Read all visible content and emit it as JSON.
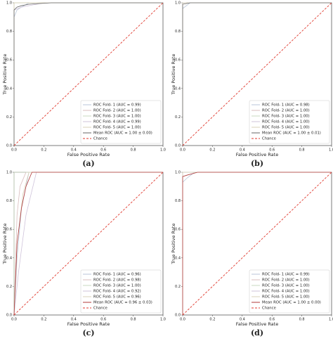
{
  "chart_data": [
    {
      "type": "line",
      "caption": "(a)",
      "x_label": "False Positive Rate",
      "y_label": "True Positive Rate",
      "xlim": [
        0,
        1
      ],
      "ylim": [
        0,
        1
      ],
      "xticks": [
        {
          "value": 0,
          "label": "0.0"
        },
        0.2,
        0.4,
        0.6,
        0.8,
        {
          "value": 1,
          "label": "1.0"
        }
      ],
      "yticks": [
        {
          "value": 0,
          "label": "0.0"
        },
        0.2,
        0.4,
        0.6,
        0.8,
        {
          "value": 1,
          "label": "1.0"
        }
      ],
      "legend": "lower right",
      "series": [
        {
          "name": "ROC Fold- 1 (AUC = 0.99)",
          "color": "#b9c6d8",
          "x": [
            0,
            0,
            0.02,
            0.05,
            0.1,
            1
          ],
          "values": [
            0,
            0.9,
            0.95,
            0.97,
            1,
            1
          ]
        },
        {
          "name": "ROC Fold- 2 (AUC = 1.00)",
          "color": "#d8bcbc",
          "x": [
            0,
            0,
            1
          ],
          "values": [
            0,
            1,
            1
          ]
        },
        {
          "name": "ROC Fold- 3 (AUC = 1.00)",
          "color": "#c9d8c0",
          "x": [
            0,
            0,
            1
          ],
          "values": [
            0,
            1,
            1
          ]
        },
        {
          "name": "ROC Fold- 4 (AUC = 0.99)",
          "color": "#cfc3da",
          "x": [
            0,
            0,
            0.05,
            0.2,
            1
          ],
          "values": [
            0,
            0.95,
            0.97,
            1,
            1
          ]
        },
        {
          "name": "ROC Fold- 5 (AUC = 1.00)",
          "color": "#d9d2b8",
          "x": [
            0,
            0,
            1
          ],
          "values": [
            0,
            1,
            1
          ]
        },
        {
          "name": "Mean ROC (AUC = 1.00 ± 0.00)",
          "color": "#666666",
          "x": [
            0,
            0,
            0.02,
            0.05,
            0.1,
            0.25,
            1
          ],
          "values": [
            0,
            0.95,
            0.97,
            0.98,
            0.99,
            1,
            1
          ]
        },
        {
          "name": "Chance",
          "color": "#e03a2f",
          "linestyle": "dashed",
          "x": [
            0,
            1
          ],
          "values": [
            0,
            1
          ]
        }
      ]
    },
    {
      "type": "line",
      "caption": "(b)",
      "x_label": "False Positive Rate",
      "y_label": "True Positive Rate",
      "xlim": [
        0,
        1
      ],
      "ylim": [
        0,
        1
      ],
      "xticks": [
        {
          "value": 0,
          "label": "0.0"
        },
        0.2,
        0.4,
        0.6,
        0.8,
        {
          "value": 1,
          "label": "1.0"
        }
      ],
      "yticks": [
        {
          "value": 0,
          "label": "0.0"
        },
        0.2,
        0.4,
        0.6,
        0.8,
        {
          "value": 1,
          "label": "1.0"
        }
      ],
      "legend": "lower right",
      "series": [
        {
          "name": "ROC Fold- 1 (AUC = 0.98)",
          "color": "#b9c6d8",
          "x": [
            0,
            0,
            0.05,
            1
          ],
          "values": [
            0,
            0.96,
            1,
            1
          ]
        },
        {
          "name": "ROC Fold- 2 (AUC = 1.00)",
          "color": "#d8bcbc",
          "x": [
            0,
            0,
            1
          ],
          "values": [
            0,
            1,
            1
          ]
        },
        {
          "name": "ROC Fold- 3 (AUC = 1.00)",
          "color": "#c9d8c0",
          "x": [
            0,
            0,
            1
          ],
          "values": [
            0,
            1,
            1
          ]
        },
        {
          "name": "ROC Fold- 4 (AUC = 1.00)",
          "color": "#cfc3da",
          "x": [
            0,
            0,
            1
          ],
          "values": [
            0,
            1,
            1
          ]
        },
        {
          "name": "ROC Fold- 5 (AUC = 1.00)",
          "color": "#d9d2b8",
          "x": [
            0,
            0,
            1
          ],
          "values": [
            0,
            1,
            1
          ]
        },
        {
          "name": "Mean ROC (AUC = 1.00 ± 0.01)",
          "color": "#666666",
          "x": [
            0,
            0,
            0.05,
            1
          ],
          "values": [
            0,
            0.99,
            1,
            1
          ]
        },
        {
          "name": "Chance",
          "color": "#e03a2f",
          "linestyle": "dashed",
          "x": [
            0,
            1
          ],
          "values": [
            0,
            1
          ]
        }
      ]
    },
    {
      "type": "line",
      "caption": "(c)",
      "x_label": "False Positive Rate",
      "y_label": "True Positive Rate",
      "xlim": [
        0,
        1
      ],
      "ylim": [
        0,
        1
      ],
      "xticks": [
        {
          "value": 0,
          "label": "0.0"
        },
        0.2,
        0.4,
        0.6,
        0.8,
        {
          "value": 1,
          "label": "1.0"
        }
      ],
      "yticks": [
        {
          "value": 0,
          "label": "0.0"
        },
        0.2,
        0.4,
        0.6,
        0.8,
        {
          "value": 1,
          "label": "1.0"
        }
      ],
      "legend": "lower right",
      "series": [
        {
          "name": "ROC Fold- 1 (AUC = 0.96)",
          "color": "#b9c6d8",
          "x": [
            0,
            0.02,
            0.05,
            0.1,
            1
          ],
          "values": [
            0,
            0.4,
            0.75,
            1,
            1
          ]
        },
        {
          "name": "ROC Fold- 2 (AUC = 0.98)",
          "color": "#d8bcbc",
          "x": [
            0,
            0.02,
            0.04,
            0.08,
            1
          ],
          "values": [
            0,
            0.7,
            0.9,
            1,
            1
          ]
        },
        {
          "name": "ROC Fold- 3 (AUC = 1.00)",
          "color": "#c9d8c0",
          "x": [
            0,
            0,
            1
          ],
          "values": [
            0,
            1,
            1
          ]
        },
        {
          "name": "ROC Fold- 4 (AUC = 0.92)",
          "color": "#cfc3da",
          "x": [
            0,
            0.03,
            0.08,
            0.15,
            1
          ],
          "values": [
            0,
            0.3,
            0.7,
            1,
            1
          ]
        },
        {
          "name": "ROC Fold- 5 (AUC = 0.96)",
          "color": "#d9d2b8",
          "x": [
            0,
            0.02,
            0.06,
            0.1,
            1
          ],
          "values": [
            0,
            0.5,
            0.85,
            1,
            1
          ]
        },
        {
          "name": "Mean ROC (AUC = 0.96 ± 0.03)",
          "color": "#b03a3a",
          "x": [
            0,
            0.02,
            0.05,
            0.08,
            0.12,
            1
          ],
          "values": [
            0,
            0.5,
            0.75,
            0.9,
            1,
            1
          ]
        },
        {
          "name": "Chance",
          "color": "#e03a2f",
          "linestyle": "dashed",
          "x": [
            0,
            1
          ],
          "values": [
            0,
            1
          ]
        }
      ]
    },
    {
      "type": "line",
      "caption": "(d)",
      "x_label": "False Positive Rate",
      "y_label": "True Positive Rate",
      "xlim": [
        0,
        1
      ],
      "ylim": [
        0,
        1
      ],
      "xticks": [
        {
          "value": 0,
          "label": "0.0"
        },
        0.2,
        0.4,
        0.6,
        0.8,
        {
          "value": 1,
          "label": "1.0"
        }
      ],
      "yticks": [
        {
          "value": 0,
          "label": "0.0"
        },
        0.2,
        0.4,
        0.6,
        0.8,
        {
          "value": 1,
          "label": "1.0"
        }
      ],
      "legend": "lower right",
      "series": [
        {
          "name": "ROC Fold- 1 (AUC = 0.99)",
          "color": "#b9c6d8",
          "x": [
            0,
            0,
            0.03,
            0.08,
            1
          ],
          "values": [
            0,
            0.93,
            0.96,
            1,
            1
          ]
        },
        {
          "name": "ROC Fold- 2 (AUC = 1.00)",
          "color": "#d8bcbc",
          "x": [
            0,
            0,
            1
          ],
          "values": [
            0,
            1,
            1
          ]
        },
        {
          "name": "ROC Fold- 3 (AUC = 1.00)",
          "color": "#c9d8c0",
          "x": [
            0,
            0,
            1
          ],
          "values": [
            0,
            1,
            1
          ]
        },
        {
          "name": "ROC Fold- 4 (AUC = 1.00)",
          "color": "#cfc3da",
          "x": [
            0,
            0,
            1
          ],
          "values": [
            0,
            1,
            1
          ]
        },
        {
          "name": "ROC Fold- 5 (AUC = 1.00)",
          "color": "#d9d2b8",
          "x": [
            0,
            0,
            1
          ],
          "values": [
            0,
            1,
            1
          ]
        },
        {
          "name": "Mean ROC (AUC = 1.00 ± 0.00)",
          "color": "#b03a3a",
          "x": [
            0,
            0,
            0.03,
            0.1,
            1
          ],
          "values": [
            0,
            0.97,
            0.98,
            1,
            1
          ]
        },
        {
          "name": "Chance",
          "color": "#e03a2f",
          "linestyle": "dashed",
          "x": [
            0,
            1
          ],
          "values": [
            0,
            1
          ]
        }
      ]
    }
  ]
}
